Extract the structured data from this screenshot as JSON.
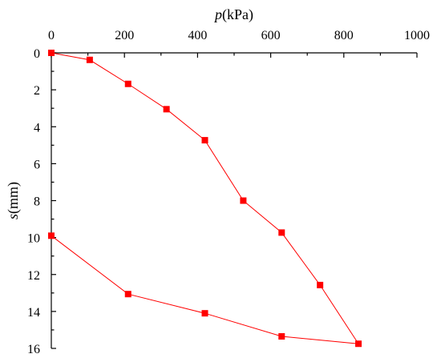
{
  "chart_data": {
    "type": "line",
    "x_axis": {
      "label_italic": "p",
      "label_rest": "(kPa)",
      "range": [
        0,
        1000
      ],
      "ticks": [
        0,
        200,
        400,
        600,
        800,
        1000
      ],
      "position": "top"
    },
    "y_axis": {
      "label_italic": "s",
      "label_rest": "(mm)",
      "range": [
        0,
        16
      ],
      "ticks": [
        0,
        2,
        4,
        6,
        8,
        10,
        12,
        14,
        16
      ],
      "inverted": true
    },
    "grid": false,
    "series": [
      {
        "color": "#ff0000",
        "marker": "square",
        "points": [
          {
            "x": 0,
            "y": 0
          },
          {
            "x": 105,
            "y": 0.38
          },
          {
            "x": 210,
            "y": 1.68
          },
          {
            "x": 315,
            "y": 3.05
          },
          {
            "x": 420,
            "y": 4.73
          },
          {
            "x": 525,
            "y": 8.0
          },
          {
            "x": 630,
            "y": 9.73
          },
          {
            "x": 735,
            "y": 12.57
          },
          {
            "x": 840,
            "y": 15.75
          },
          {
            "x": 630,
            "y": 15.35
          },
          {
            "x": 420,
            "y": 14.1
          },
          {
            "x": 210,
            "y": 13.06
          },
          {
            "x": 0,
            "y": 9.9
          }
        ]
      }
    ]
  }
}
